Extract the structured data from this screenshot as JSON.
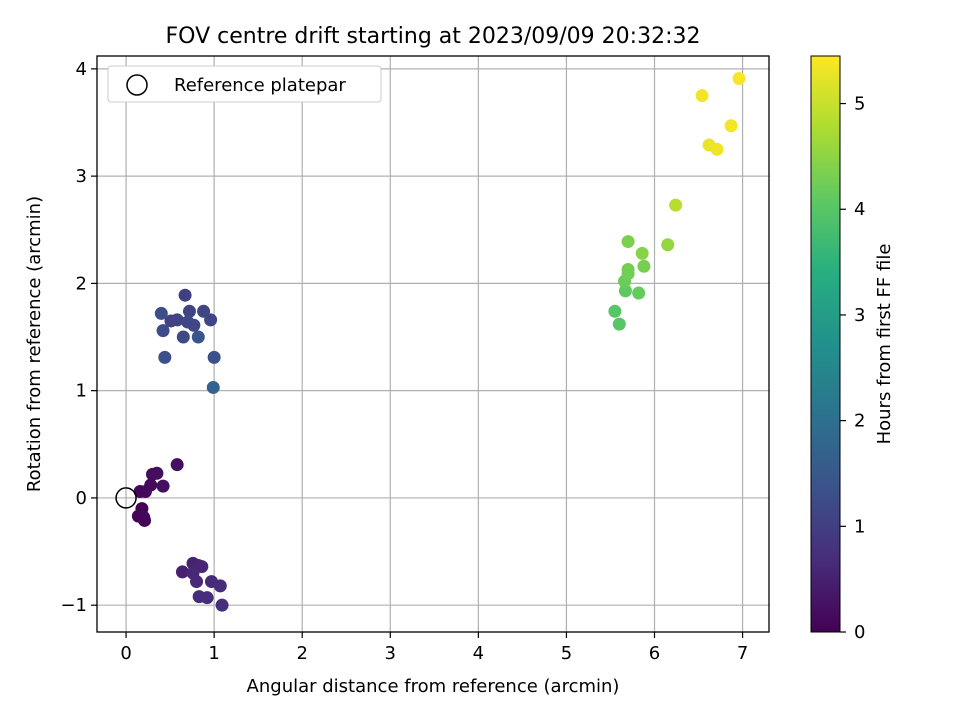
{
  "chart_data": {
    "type": "scatter",
    "title": "FOV centre drift starting at 2023/09/09 20:32:32",
    "xlabel": "Angular distance from reference (arcmin)",
    "ylabel": "Rotation from reference (arcmin)",
    "colorbar_label": "Hours from first FF file",
    "xlim": [
      -0.33,
      7.3
    ],
    "ylim": [
      -1.25,
      4.12
    ],
    "colorbar_range": [
      0,
      5.45
    ],
    "x_ticks": [
      0,
      1,
      2,
      3,
      4,
      5,
      6,
      7
    ],
    "y_ticks": [
      -1,
      0,
      1,
      2,
      3,
      4
    ],
    "colorbar_ticks": [
      0,
      1,
      2,
      3,
      4,
      5
    ],
    "tick_labels_x": [
      "0",
      "1",
      "2",
      "3",
      "4",
      "5",
      "6",
      "7"
    ],
    "tick_labels_y": [
      "−1",
      "0",
      "1",
      "2",
      "3",
      "4"
    ],
    "tick_labels_colorbar": [
      "0",
      "1",
      "2",
      "3",
      "4",
      "5"
    ],
    "grid": true,
    "colormap": "viridis",
    "legend": {
      "position": "top-left",
      "label": "Reference platepar"
    },
    "reference_point": {
      "x": 0,
      "y": 0
    },
    "points": [
      {
        "x": 0.14,
        "y": -0.17,
        "t": 0.05
      },
      {
        "x": 0.18,
        "y": -0.1,
        "t": 0.06
      },
      {
        "x": 0.2,
        "y": -0.18,
        "t": 0.07
      },
      {
        "x": 0.21,
        "y": -0.21,
        "t": 0.08
      },
      {
        "x": 0.16,
        "y": 0.06,
        "t": 0.1
      },
      {
        "x": 0.22,
        "y": 0.06,
        "t": 0.12
      },
      {
        "x": 0.28,
        "y": 0.12,
        "t": 0.14
      },
      {
        "x": 0.3,
        "y": 0.22,
        "t": 0.16
      },
      {
        "x": 0.35,
        "y": 0.23,
        "t": 0.18
      },
      {
        "x": 0.42,
        "y": 0.11,
        "t": 0.2
      },
      {
        "x": 0.58,
        "y": 0.31,
        "t": 0.22
      },
      {
        "x": 0.64,
        "y": -0.69,
        "t": 0.5
      },
      {
        "x": 0.76,
        "y": -0.61,
        "t": 0.52
      },
      {
        "x": 0.82,
        "y": -0.63,
        "t": 0.55
      },
      {
        "x": 0.86,
        "y": -0.64,
        "t": 0.57
      },
      {
        "x": 0.76,
        "y": -0.7,
        "t": 0.6
      },
      {
        "x": 0.8,
        "y": -0.78,
        "t": 0.62
      },
      {
        "x": 0.97,
        "y": -0.78,
        "t": 0.64
      },
      {
        "x": 1.07,
        "y": -0.82,
        "t": 0.66
      },
      {
        "x": 0.83,
        "y": -0.92,
        "t": 0.68
      },
      {
        "x": 0.92,
        "y": -0.93,
        "t": 0.7
      },
      {
        "x": 1.09,
        "y": -1.0,
        "t": 0.72
      },
      {
        "x": 0.67,
        "y": 1.89,
        "t": 1.0
      },
      {
        "x": 0.51,
        "y": 1.65,
        "t": 1.05
      },
      {
        "x": 0.58,
        "y": 1.66,
        "t": 1.08
      },
      {
        "x": 0.72,
        "y": 1.74,
        "t": 1.1
      },
      {
        "x": 0.88,
        "y": 1.74,
        "t": 1.12
      },
      {
        "x": 0.96,
        "y": 1.66,
        "t": 1.14
      },
      {
        "x": 0.77,
        "y": 1.61,
        "t": 1.16
      },
      {
        "x": 0.7,
        "y": 1.64,
        "t": 1.18
      },
      {
        "x": 0.65,
        "y": 1.5,
        "t": 1.22
      },
      {
        "x": 0.42,
        "y": 1.56,
        "t": 1.25
      },
      {
        "x": 0.4,
        "y": 1.72,
        "t": 1.28
      },
      {
        "x": 0.44,
        "y": 1.31,
        "t": 1.3
      },
      {
        "x": 1.0,
        "y": 1.31,
        "t": 1.35
      },
      {
        "x": 0.82,
        "y": 1.5,
        "t": 1.45
      },
      {
        "x": 0.99,
        "y": 1.03,
        "t": 1.7
      },
      {
        "x": 5.55,
        "y": 1.74,
        "t": 4.0
      },
      {
        "x": 5.6,
        "y": 1.62,
        "t": 4.02
      },
      {
        "x": 5.67,
        "y": 1.93,
        "t": 4.1
      },
      {
        "x": 5.82,
        "y": 1.91,
        "t": 4.15
      },
      {
        "x": 5.66,
        "y": 2.02,
        "t": 4.2
      },
      {
        "x": 5.7,
        "y": 2.09,
        "t": 4.25
      },
      {
        "x": 5.7,
        "y": 2.13,
        "t": 4.28
      },
      {
        "x": 5.88,
        "y": 2.16,
        "t": 4.3
      },
      {
        "x": 5.7,
        "y": 2.39,
        "t": 4.35
      },
      {
        "x": 5.86,
        "y": 2.28,
        "t": 4.45
      },
      {
        "x": 6.15,
        "y": 2.36,
        "t": 4.55
      },
      {
        "x": 6.24,
        "y": 2.73,
        "t": 4.85
      },
      {
        "x": 6.54,
        "y": 3.75,
        "t": 5.35
      },
      {
        "x": 6.62,
        "y": 3.29,
        "t": 5.3
      },
      {
        "x": 6.71,
        "y": 3.25,
        "t": 5.32
      },
      {
        "x": 6.87,
        "y": 3.47,
        "t": 5.36
      },
      {
        "x": 6.96,
        "y": 3.91,
        "t": 5.4
      }
    ]
  }
}
